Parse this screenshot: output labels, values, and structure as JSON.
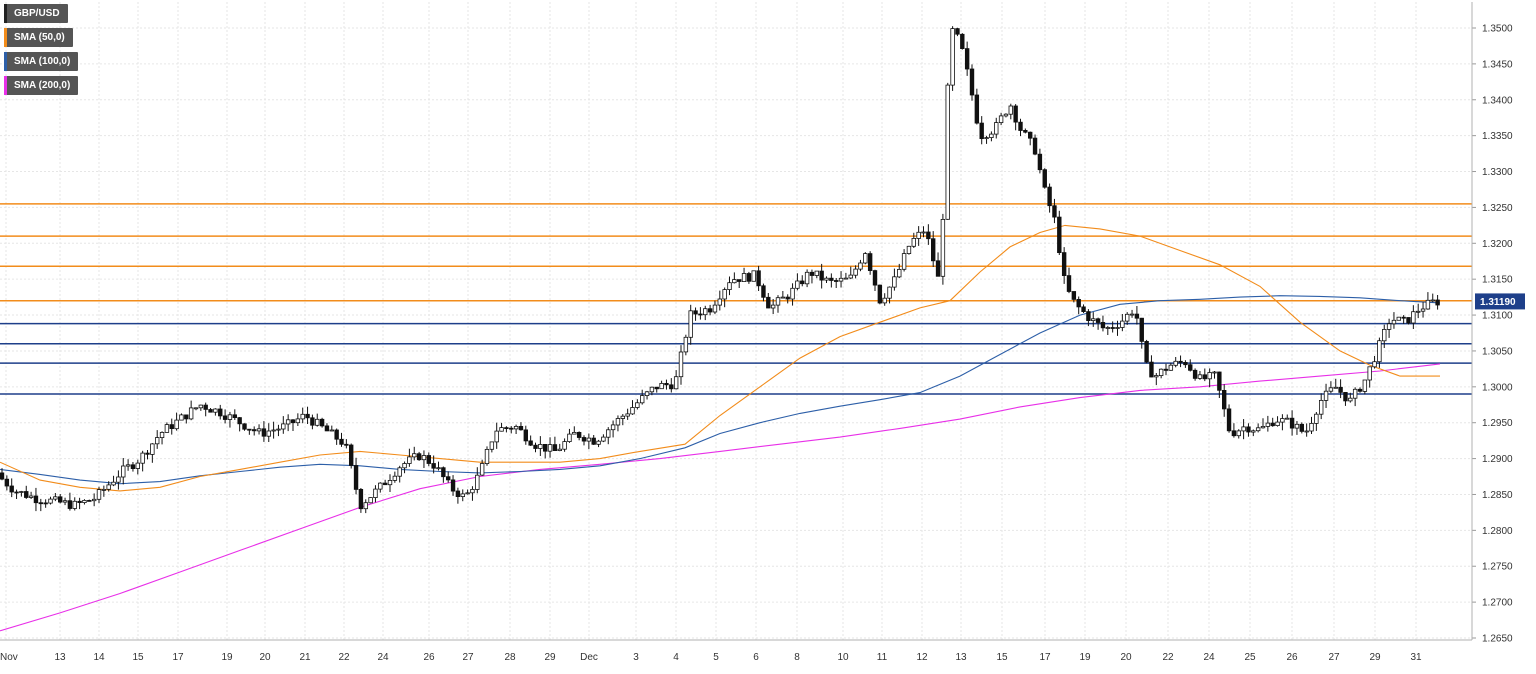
{
  "legend": [
    {
      "label": "GBP/USD",
      "color": "#222222"
    },
    {
      "label": "SMA (50,0)",
      "color": "#f28c1b"
    },
    {
      "label": "SMA (100,0)",
      "color": "#2d5fa8"
    },
    {
      "label": "SMA (200,0)",
      "color": "#e830e8"
    }
  ],
  "chart_data": {
    "type": "candlestick",
    "title": "",
    "ylim": [
      1.263,
      1.352
    ],
    "y_ticks": [
      "1.2650",
      "1.2700",
      "1.2750",
      "1.2800",
      "1.2850",
      "1.2900",
      "1.2950",
      "1.3000",
      "1.3050",
      "1.3100",
      "1.3150",
      "1.3200",
      "1.3250",
      "1.3300",
      "1.3350",
      "1.3400",
      "1.3450",
      "1.3500"
    ],
    "x_ticks": [
      "Nov",
      "13",
      "14",
      "15",
      "17",
      "19",
      "20",
      "21",
      "22",
      "24",
      "26",
      "27",
      "28",
      "29",
      "Dec",
      "3",
      "4",
      "5",
      "6",
      "8",
      "10",
      "11",
      "12",
      "13",
      "15",
      "17",
      "19",
      "20",
      "22",
      "24",
      "25",
      "26",
      "27",
      "29",
      "31"
    ],
    "last_price": "1.31190",
    "last_price_color": "#1e3f8a",
    "grid": true,
    "horizontal_levels": [
      {
        "value": 1.3255,
        "color": "#f28c1b"
      },
      {
        "value": 1.321,
        "color": "#f28c1b"
      },
      {
        "value": 1.3168,
        "color": "#f28c1b"
      },
      {
        "value": 1.312,
        "color": "#f28c1b"
      },
      {
        "value": 1.3088,
        "color": "#1e3f8a"
      },
      {
        "value": 1.306,
        "color": "#1e3f8a"
      },
      {
        "value": 1.3033,
        "color": "#1e3f8a"
      },
      {
        "value": 1.299,
        "color": "#1e3f8a"
      }
    ],
    "series": [
      {
        "name": "GBP/USD",
        "color": "#000000"
      },
      {
        "name": "SMA (50,0)",
        "color": "#f28c1b"
      },
      {
        "name": "SMA (100,0)",
        "color": "#2d5fa8"
      },
      {
        "name": "SMA (200,0)",
        "color": "#e830e8"
      }
    ],
    "candle_anchors": [
      [
        0,
        1.288
      ],
      [
        20,
        1.2855
      ],
      [
        40,
        1.2845
      ],
      [
        60,
        1.284
      ],
      [
        80,
        1.2835
      ],
      [
        100,
        1.2845
      ],
      [
        125,
        1.288
      ],
      [
        145,
        1.29
      ],
      [
        165,
        1.2935
      ],
      [
        185,
        1.2955
      ],
      [
        205,
        1.2975
      ],
      [
        225,
        1.2965
      ],
      [
        245,
        1.295
      ],
      [
        265,
        1.2935
      ],
      [
        290,
        1.2945
      ],
      [
        310,
        1.296
      ],
      [
        330,
        1.294
      ],
      [
        350,
        1.292
      ],
      [
        365,
        1.2835
      ],
      [
        385,
        1.286
      ],
      [
        405,
        1.289
      ],
      [
        425,
        1.2905
      ],
      [
        440,
        1.289
      ],
      [
        455,
        1.286
      ],
      [
        470,
        1.2845
      ],
      [
        485,
        1.288
      ],
      [
        500,
        1.294
      ],
      [
        520,
        1.2945
      ],
      [
        540,
        1.292
      ],
      [
        560,
        1.291
      ],
      [
        580,
        1.2935
      ],
      [
        600,
        1.2925
      ],
      [
        620,
        1.295
      ],
      [
        640,
        1.2975
      ],
      [
        660,
        1.3
      ],
      [
        680,
        1.3005
      ],
      [
        695,
        1.31
      ],
      [
        715,
        1.311
      ],
      [
        735,
        1.315
      ],
      [
        760,
        1.3155
      ],
      [
        775,
        1.311
      ],
      [
        795,
        1.313
      ],
      [
        815,
        1.316
      ],
      [
        835,
        1.3145
      ],
      [
        855,
        1.315
      ],
      [
        870,
        1.319
      ],
      [
        885,
        1.312
      ],
      [
        900,
        1.315
      ],
      [
        915,
        1.32
      ],
      [
        930,
        1.322
      ],
      [
        945,
        1.314
      ],
      [
        955,
        1.35
      ],
      [
        965,
        1.348
      ],
      [
        975,
        1.342
      ],
      [
        985,
        1.335
      ],
      [
        1000,
        1.336
      ],
      [
        1015,
        1.3395
      ],
      [
        1025,
        1.336
      ],
      [
        1040,
        1.333
      ],
      [
        1050,
        1.327
      ],
      [
        1060,
        1.323
      ],
      [
        1070,
        1.314
      ],
      [
        1080,
        1.3115
      ],
      [
        1095,
        1.3095
      ],
      [
        1110,
        1.308
      ],
      [
        1125,
        1.309
      ],
      [
        1140,
        1.311
      ],
      [
        1150,
        1.303
      ],
      [
        1160,
        1.3015
      ],
      [
        1175,
        1.303
      ],
      [
        1190,
        1.3035
      ],
      [
        1205,
        1.301
      ],
      [
        1220,
        1.3015
      ],
      [
        1235,
        1.2935
      ],
      [
        1250,
        1.2945
      ],
      [
        1265,
        1.294
      ],
      [
        1280,
        1.2955
      ],
      [
        1295,
        1.295
      ],
      [
        1310,
        1.2935
      ],
      [
        1325,
        1.298
      ],
      [
        1340,
        1.3
      ],
      [
        1355,
        1.298
      ],
      [
        1370,
        1.301
      ],
      [
        1385,
        1.306
      ],
      [
        1395,
        1.3095
      ],
      [
        1410,
        1.309
      ],
      [
        1425,
        1.311
      ],
      [
        1440,
        1.3119
      ]
    ],
    "sma50": [
      [
        0,
        1.2895
      ],
      [
        40,
        1.287
      ],
      [
        80,
        1.286
      ],
      [
        120,
        1.2855
      ],
      [
        160,
        1.286
      ],
      [
        200,
        1.2875
      ],
      [
        240,
        1.2885
      ],
      [
        280,
        1.2895
      ],
      [
        320,
        1.2905
      ],
      [
        360,
        1.291
      ],
      [
        400,
        1.2905
      ],
      [
        440,
        1.29
      ],
      [
        480,
        1.2895
      ],
      [
        520,
        1.2895
      ],
      [
        560,
        1.2895
      ],
      [
        600,
        1.29
      ],
      [
        640,
        1.291
      ],
      [
        685,
        1.292
      ],
      [
        720,
        1.296
      ],
      [
        760,
        1.3
      ],
      [
        800,
        1.304
      ],
      [
        840,
        1.307
      ],
      [
        880,
        1.309
      ],
      [
        920,
        1.311
      ],
      [
        950,
        1.312
      ],
      [
        980,
        1.316
      ],
      [
        1010,
        1.3195
      ],
      [
        1040,
        1.3215
      ],
      [
        1065,
        1.3225
      ],
      [
        1100,
        1.322
      ],
      [
        1140,
        1.321
      ],
      [
        1180,
        1.319
      ],
      [
        1220,
        1.317
      ],
      [
        1260,
        1.314
      ],
      [
        1300,
        1.309
      ],
      [
        1340,
        1.305
      ],
      [
        1370,
        1.303
      ],
      [
        1400,
        1.3015
      ],
      [
        1440,
        1.3015
      ]
    ],
    "sma100": [
      [
        0,
        1.2885
      ],
      [
        40,
        1.2878
      ],
      [
        80,
        1.287
      ],
      [
        120,
        1.2865
      ],
      [
        160,
        1.2868
      ],
      [
        200,
        1.2876
      ],
      [
        240,
        1.2882
      ],
      [
        280,
        1.2888
      ],
      [
        320,
        1.2892
      ],
      [
        360,
        1.289
      ],
      [
        400,
        1.2885
      ],
      [
        440,
        1.2882
      ],
      [
        480,
        1.288
      ],
      [
        520,
        1.2882
      ],
      [
        560,
        1.2885
      ],
      [
        600,
        1.289
      ],
      [
        640,
        1.29
      ],
      [
        685,
        1.2915
      ],
      [
        720,
        1.2935
      ],
      [
        760,
        1.295
      ],
      [
        800,
        1.2963
      ],
      [
        840,
        1.2973
      ],
      [
        880,
        1.2982
      ],
      [
        920,
        1.2992
      ],
      [
        960,
        1.3015
      ],
      [
        1000,
        1.3045
      ],
      [
        1040,
        1.3075
      ],
      [
        1080,
        1.31
      ],
      [
        1120,
        1.3115
      ],
      [
        1160,
        1.312
      ],
      [
        1200,
        1.3122
      ],
      [
        1240,
        1.3125
      ],
      [
        1280,
        1.3127
      ],
      [
        1320,
        1.3126
      ],
      [
        1360,
        1.3124
      ],
      [
        1400,
        1.312
      ],
      [
        1440,
        1.3117
      ]
    ],
    "sma200": [
      [
        0,
        1.266
      ],
      [
        60,
        1.2685
      ],
      [
        120,
        1.2712
      ],
      [
        180,
        1.2742
      ],
      [
        240,
        1.2772
      ],
      [
        300,
        1.2802
      ],
      [
        360,
        1.2832
      ],
      [
        420,
        1.2858
      ],
      [
        480,
        1.2875
      ],
      [
        540,
        1.2885
      ],
      [
        600,
        1.2892
      ],
      [
        660,
        1.29
      ],
      [
        720,
        1.291
      ],
      [
        780,
        1.292
      ],
      [
        840,
        1.293
      ],
      [
        900,
        1.2942
      ],
      [
        960,
        1.2955
      ],
      [
        1020,
        1.2972
      ],
      [
        1080,
        1.2985
      ],
      [
        1140,
        1.2995
      ],
      [
        1200,
        1.3
      ],
      [
        1260,
        1.3008
      ],
      [
        1320,
        1.3015
      ],
      [
        1380,
        1.3022
      ],
      [
        1440,
        1.3032
      ]
    ]
  }
}
